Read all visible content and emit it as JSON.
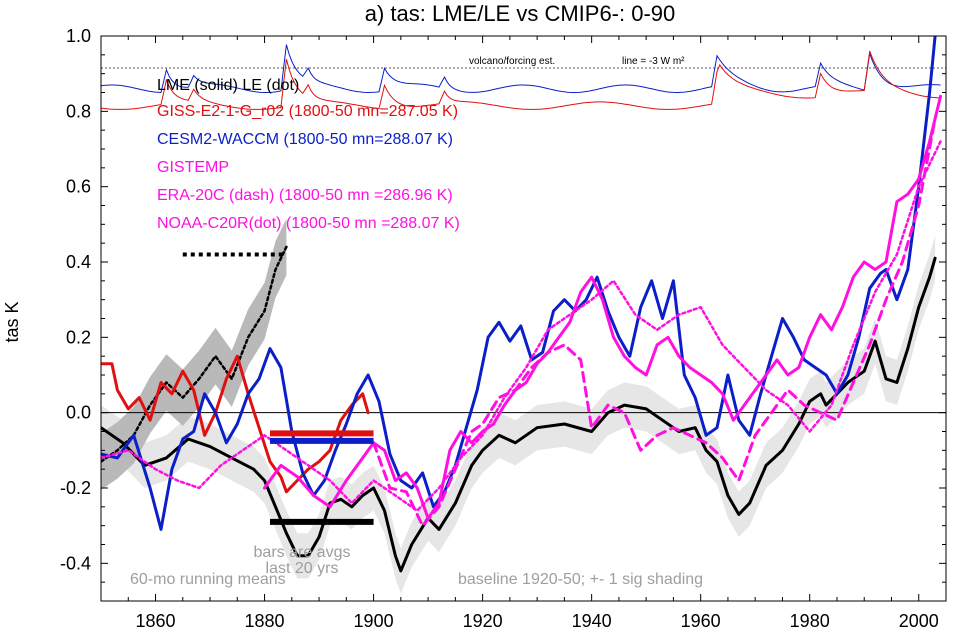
{
  "chart_data": {
    "type": "line",
    "title": "a) tas: LME/LE vs CMIP6-: 0-90",
    "ylabel": "tas K",
    "xlabel": "",
    "xlim": [
      1850,
      2005
    ],
    "ylim": [
      -0.5,
      1.0
    ],
    "xticks": [
      1860,
      1880,
      1900,
      1920,
      1940,
      1960,
      1980,
      2000
    ],
    "yticks": [
      -0.4,
      -0.2,
      0.0,
      0.2,
      0.4,
      0.6,
      0.8,
      1.0
    ],
    "ytick_labels": [
      "-0.4",
      "-0.2",
      "0.0",
      "0.2",
      "0.4",
      "0.6",
      "0.8",
      "1.0"
    ],
    "grid": false,
    "zero_line": 0.0,
    "legend": [
      {
        "text": "LME (solid)   LE (dot)",
        "color": "#000000"
      },
      {
        "text": "GISS-E2-1-G_r02 (1800-50 mn=287.05 K)",
        "color": "#e01010"
      },
      {
        "text": "CESM2-WACCM (1800-50 mn=288.07 K)",
        "color": "#0a1fc8"
      },
      {
        "text": "GISTEMP",
        "color": "#ff10e0"
      },
      {
        "text": "ERA-20C (dash) (1800-50 mn =286.96 K)",
        "color": "#ff10e0"
      },
      {
        "text": "NOAA-C20R(dot) (1800-50 mn =288.07 K)",
        "color": "#ff10e0"
      }
    ],
    "annotations": {
      "volcano": "volcano/forcing est.",
      "forcing_scale": "line = -3 W m²",
      "bars_note_1": "bars are avgs",
      "bars_note_2": "last 20 yrs",
      "running_mean": "60-mo running means",
      "baseline": "baseline 1920-50; +- 1 sig shading"
    },
    "volcano_threshold_y": 0.915,
    "series": [
      {
        "name": "LME (solid)",
        "color": "#000000",
        "style": "solid",
        "x": [
          1850,
          1854,
          1858,
          1862,
          1866,
          1870,
          1874,
          1878,
          1880,
          1882,
          1884,
          1886,
          1888,
          1890,
          1892,
          1894,
          1896,
          1898,
          1900,
          1902,
          1904,
          1905,
          1907,
          1910,
          1912,
          1915,
          1918,
          1920,
          1923,
          1926,
          1930,
          1935,
          1940,
          1943,
          1946,
          1950,
          1953,
          1956,
          1959,
          1961,
          1963,
          1965,
          1967,
          1969,
          1972,
          1975,
          1978,
          1980,
          1982,
          1983,
          1985,
          1987,
          1990,
          1992,
          1994,
          1996,
          1998,
          2000,
          2002,
          2003
        ],
        "y": [
          -0.04,
          -0.08,
          -0.14,
          -0.12,
          -0.07,
          -0.09,
          -0.12,
          -0.15,
          -0.18,
          -0.25,
          -0.32,
          -0.38,
          -0.38,
          -0.33,
          -0.24,
          -0.23,
          -0.25,
          -0.22,
          -0.2,
          -0.26,
          -0.38,
          -0.42,
          -0.35,
          -0.28,
          -0.31,
          -0.24,
          -0.14,
          -0.1,
          -0.06,
          -0.08,
          -0.04,
          -0.03,
          -0.05,
          0.0,
          0.02,
          0.01,
          -0.02,
          -0.05,
          -0.04,
          -0.1,
          -0.13,
          -0.22,
          -0.27,
          -0.24,
          -0.14,
          -0.1,
          -0.03,
          0.03,
          0.05,
          0.02,
          0.05,
          0.08,
          0.11,
          0.19,
          0.09,
          0.08,
          0.17,
          0.28,
          0.36,
          0.41
        ]
      },
      {
        "name": "LE (dot)",
        "color": "#000000",
        "style": "dot",
        "x": [
          1850,
          1853,
          1856,
          1859,
          1862,
          1865,
          1868,
          1871,
          1874,
          1877,
          1880,
          1882,
          1884
        ],
        "y": [
          -0.13,
          -0.1,
          -0.06,
          0.02,
          0.08,
          0.04,
          0.09,
          0.15,
          0.09,
          0.2,
          0.27,
          0.38,
          0.44
        ]
      },
      {
        "name": "GISS-E2-1-G_r02",
        "color": "#e01010",
        "style": "solid",
        "x": [
          1850,
          1852,
          1853,
          1855,
          1857,
          1859,
          1861,
          1863,
          1865,
          1867,
          1869,
          1871,
          1873,
          1875,
          1877,
          1879,
          1881,
          1883,
          1884,
          1886,
          1888,
          1890,
          1892,
          1894,
          1896,
          1898,
          1899
        ],
        "y": [
          0.13,
          0.13,
          0.06,
          0.01,
          0.04,
          -0.02,
          0.08,
          0.05,
          0.11,
          0.06,
          -0.06,
          0.0,
          0.09,
          0.15,
          0.05,
          -0.04,
          -0.13,
          -0.17,
          -0.21,
          -0.18,
          -0.15,
          -0.13,
          -0.1,
          -0.02,
          0.02,
          0.05,
          0.0
        ]
      },
      {
        "name": "CESM2-WACCM",
        "color": "#0a1fc8",
        "style": "solid",
        "x": [
          1850,
          1853,
          1856,
          1859,
          1861,
          1863,
          1865,
          1867,
          1869,
          1871,
          1873,
          1875,
          1877,
          1879,
          1881,
          1883,
          1885,
          1887,
          1889,
          1891,
          1893,
          1895,
          1897,
          1899,
          1901,
          1903,
          1905,
          1907,
          1909,
          1911,
          1913,
          1915,
          1917,
          1919,
          1921,
          1923,
          1925,
          1927,
          1929,
          1931,
          1933,
          1935,
          1937,
          1939,
          1941,
          1943,
          1945,
          1947,
          1949,
          1951,
          1953,
          1955,
          1957,
          1959,
          1961,
          1963,
          1965,
          1967,
          1969,
          1971,
          1973,
          1975,
          1977,
          1979,
          1981,
          1983,
          1985,
          1987,
          1989,
          1991,
          1993,
          1994,
          1996,
          1998,
          2000,
          2002,
          2003
        ],
        "y": [
          -0.11,
          -0.12,
          -0.06,
          -0.2,
          -0.31,
          -0.15,
          -0.07,
          -0.05,
          0.05,
          0.0,
          -0.08,
          -0.03,
          0.05,
          0.09,
          0.17,
          0.12,
          -0.05,
          -0.16,
          -0.22,
          -0.18,
          -0.1,
          -0.03,
          0.05,
          0.1,
          0.03,
          -0.11,
          -0.18,
          -0.2,
          -0.16,
          -0.25,
          -0.21,
          -0.14,
          -0.04,
          0.06,
          0.2,
          0.24,
          0.19,
          0.23,
          0.14,
          0.16,
          0.27,
          0.3,
          0.27,
          0.3,
          0.36,
          0.27,
          0.2,
          0.15,
          0.28,
          0.35,
          0.25,
          0.35,
          0.1,
          0.04,
          -0.06,
          -0.04,
          0.1,
          -0.02,
          -0.06,
          0.05,
          0.15,
          0.25,
          0.2,
          0.14,
          0.12,
          0.1,
          0.05,
          0.1,
          0.2,
          0.33,
          0.37,
          0.38,
          0.3,
          0.38,
          0.6,
          0.85,
          1.0
        ]
      },
      {
        "name": "GISTEMP",
        "color": "#ff10e0",
        "style": "solid",
        "x": [
          1880,
          1883,
          1886,
          1889,
          1892,
          1895,
          1898,
          1900,
          1902,
          1904,
          1906,
          1908,
          1910,
          1912,
          1914,
          1916,
          1918,
          1920,
          1922,
          1924,
          1926,
          1928,
          1930,
          1932,
          1934,
          1936,
          1938,
          1940,
          1942,
          1944,
          1946,
          1948,
          1950,
          1952,
          1954,
          1956,
          1958,
          1960,
          1962,
          1964,
          1966,
          1968,
          1970,
          1972,
          1974,
          1976,
          1978,
          1980,
          1982,
          1984,
          1986,
          1988,
          1990,
          1992,
          1994,
          1996,
          1998,
          2000,
          2002,
          2004
        ],
        "y": [
          -0.2,
          -0.14,
          -0.17,
          -0.22,
          -0.25,
          -0.18,
          -0.12,
          -0.08,
          -0.1,
          -0.18,
          -0.16,
          -0.2,
          -0.28,
          -0.24,
          -0.1,
          -0.05,
          -0.08,
          -0.05,
          -0.03,
          0.02,
          0.06,
          0.08,
          0.13,
          0.16,
          0.2,
          0.24,
          0.32,
          0.36,
          0.3,
          0.2,
          0.15,
          0.12,
          0.1,
          0.18,
          0.2,
          0.15,
          0.12,
          0.1,
          0.08,
          0.05,
          -0.02,
          0.02,
          0.06,
          0.1,
          0.14,
          0.1,
          0.12,
          0.2,
          0.26,
          0.22,
          0.28,
          0.36,
          0.4,
          0.38,
          0.4,
          0.56,
          0.58,
          0.62,
          0.72,
          0.84
        ]
      },
      {
        "name": "ERA-20C (dash)",
        "color": "#ff10e0",
        "style": "dash",
        "x": [
          1900,
          1903,
          1906,
          1909,
          1912,
          1915,
          1918,
          1920,
          1923,
          1926,
          1929,
          1932,
          1935,
          1938,
          1940,
          1943,
          1946,
          1949,
          1952,
          1955,
          1958,
          1961,
          1964,
          1967,
          1970,
          1973,
          1976,
          1979,
          1982,
          1985,
          1988,
          1991,
          1994,
          1997,
          2000,
          2003
        ],
        "y": [
          -0.08,
          -0.2,
          -0.21,
          -0.3,
          -0.25,
          -0.15,
          -0.05,
          -0.03,
          0.04,
          0.06,
          0.12,
          0.16,
          0.18,
          0.14,
          -0.04,
          0.02,
          0.0,
          -0.1,
          -0.06,
          -0.04,
          -0.06,
          -0.08,
          -0.12,
          -0.18,
          -0.06,
          0.0,
          0.06,
          0.02,
          0.0,
          -0.02,
          0.08,
          0.18,
          0.3,
          0.4,
          0.55,
          0.78
        ]
      },
      {
        "name": "NOAA-C20R(dot)",
        "color": "#ff10e0",
        "style": "dot",
        "x": [
          1850,
          1855,
          1860,
          1864,
          1868,
          1872,
          1876,
          1880,
          1884,
          1888,
          1892,
          1896,
          1900,
          1904,
          1908,
          1912,
          1916,
          1920,
          1924,
          1928,
          1932,
          1936,
          1940,
          1944,
          1948,
          1952,
          1956,
          1960,
          1964,
          1968,
          1972,
          1976,
          1980,
          1984,
          1988,
          1992,
          1996,
          2000,
          2004
        ],
        "y": [
          -0.12,
          -0.1,
          -0.15,
          -0.18,
          -0.2,
          -0.14,
          -0.1,
          -0.06,
          -0.1,
          -0.14,
          -0.18,
          -0.24,
          -0.18,
          -0.22,
          -0.26,
          -0.2,
          -0.12,
          -0.06,
          0.04,
          0.12,
          0.22,
          0.26,
          0.3,
          0.35,
          0.26,
          0.22,
          0.26,
          0.28,
          0.18,
          0.12,
          0.06,
          0.02,
          -0.05,
          0.02,
          0.18,
          0.32,
          0.42,
          0.6,
          0.72
        ]
      }
    ],
    "avg_bars": [
      {
        "name": "GISS-E2-1-G_r02 avg",
        "color": "#e01010",
        "x0": 1881,
        "x1": 1900,
        "y": -0.055
      },
      {
        "name": "CESM2-WACCM avg",
        "color": "#0a1fc8",
        "x0": 1881,
        "x1": 1900,
        "y": -0.075
      },
      {
        "name": "LME avg",
        "color": "#000000",
        "x0": 1881,
        "x1": 1900,
        "y": -0.29
      },
      {
        "name": "LE avg",
        "color": "#000000",
        "x0": 1865,
        "x1": 1884,
        "y": 0.42
      }
    ]
  }
}
